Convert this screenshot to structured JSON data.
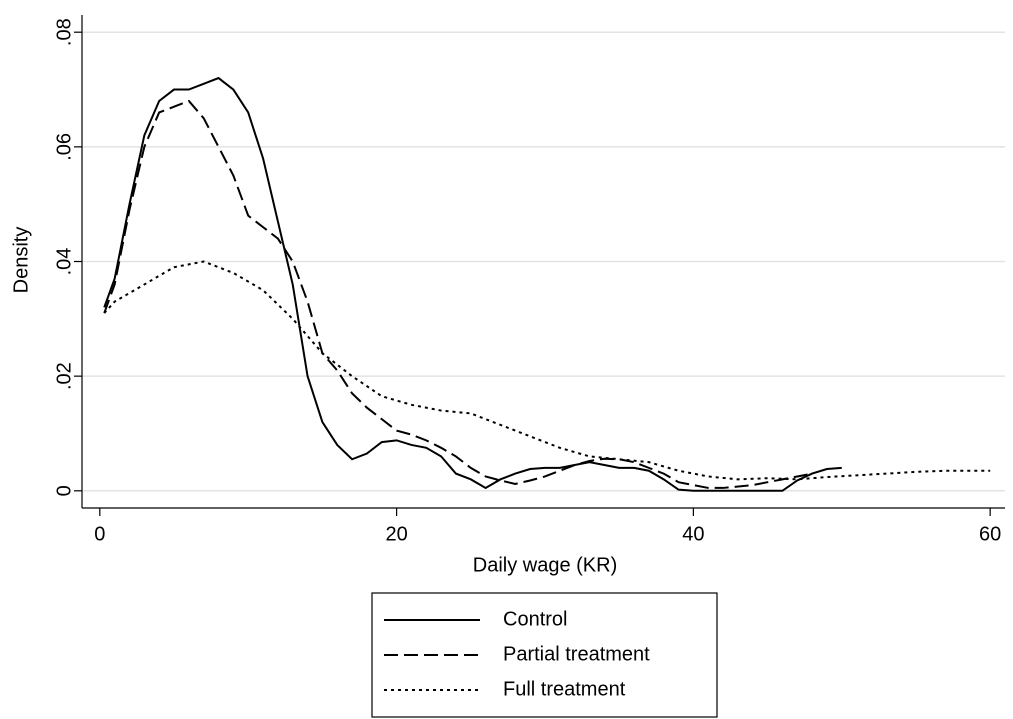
{
  "chart_data": {
    "type": "line",
    "x_label": "Daily wage (KR)",
    "y_label": "Density",
    "xlim": [
      -1.2,
      61
    ],
    "ylim": [
      -0.003,
      0.083
    ],
    "xticks": [
      0,
      20,
      40,
      60
    ],
    "yticks": [
      0,
      {
        "value": 0.02,
        "label": ".02"
      },
      {
        "value": 0.04,
        "label": ".04"
      },
      {
        "value": 0.06,
        "label": ".06"
      },
      {
        "value": 0.08,
        "label": ".08"
      }
    ],
    "grid": true,
    "legend": "bottom",
    "series": [
      {
        "name": "Control",
        "color": "#000000",
        "dash": "solid",
        "x": [
          0.3,
          1,
          2,
          3,
          4,
          5,
          6,
          7,
          8,
          9,
          10,
          11,
          12,
          13,
          14,
          15,
          16,
          17,
          18,
          19,
          20,
          21,
          22,
          23,
          24,
          25,
          26,
          27,
          28,
          29,
          30,
          31,
          32,
          33,
          34,
          35,
          36,
          37,
          38,
          39,
          40,
          42,
          44,
          46,
          47,
          48,
          49,
          50
        ],
        "values": [
          0.032,
          0.037,
          0.05,
          0.062,
          0.068,
          0.07,
          0.07,
          0.071,
          0.072,
          0.07,
          0.066,
          0.058,
          0.047,
          0.036,
          0.02,
          0.012,
          0.008,
          0.0055,
          0.0065,
          0.0085,
          0.0088,
          0.008,
          0.0075,
          0.006,
          0.003,
          0.002,
          0.0005,
          0.002,
          0.003,
          0.0038,
          0.004,
          0.004,
          0.0045,
          0.005,
          0.0045,
          0.004,
          0.004,
          0.0035,
          0.002,
          0.0002,
          0,
          0,
          0,
          0,
          0.0018,
          0.003,
          0.0038,
          0.004
        ]
      },
      {
        "name": "Partial treatment",
        "color": "#000000",
        "dash": "dashed",
        "x": [
          0.3,
          1,
          2,
          3,
          4,
          5,
          6,
          7,
          8,
          9,
          10,
          11,
          12,
          13,
          14,
          15,
          16,
          17,
          18,
          19,
          20,
          21,
          22,
          23,
          24,
          25,
          26,
          27,
          28,
          29,
          30,
          31,
          32,
          33,
          34,
          35,
          36,
          37,
          38,
          39,
          40,
          41,
          42,
          44,
          46,
          47,
          48
        ],
        "values": [
          0.031,
          0.036,
          0.049,
          0.06,
          0.066,
          0.067,
          0.068,
          0.065,
          0.06,
          0.055,
          0.048,
          0.046,
          0.044,
          0.04,
          0.033,
          0.024,
          0.021,
          0.017,
          0.0145,
          0.0125,
          0.0105,
          0.0098,
          0.0088,
          0.0075,
          0.006,
          0.004,
          0.0025,
          0.0018,
          0.0012,
          0.0018,
          0.0025,
          0.0035,
          0.0045,
          0.0052,
          0.0056,
          0.0055,
          0.005,
          0.004,
          0.003,
          0.0015,
          0.001,
          0.0005,
          0.0005,
          0.001,
          0.002,
          0.0025,
          0.003
        ]
      },
      {
        "name": "Full treatment",
        "color": "#000000",
        "dash": "dotted",
        "x": [
          0.3,
          1,
          3,
          5,
          7,
          9,
          11,
          13,
          15,
          17,
          19,
          21,
          23,
          25,
          27,
          29,
          31,
          33,
          35,
          37,
          39,
          41,
          43,
          45,
          47,
          49,
          51,
          53,
          55,
          57,
          59,
          60
        ],
        "values": [
          0.031,
          0.033,
          0.036,
          0.039,
          0.04,
          0.038,
          0.035,
          0.03,
          0.024,
          0.02,
          0.0165,
          0.015,
          0.014,
          0.0135,
          0.0115,
          0.0095,
          0.0075,
          0.006,
          0.0055,
          0.005,
          0.0035,
          0.0025,
          0.002,
          0.0022,
          0.002,
          0.0024,
          0.0027,
          0.003,
          0.0033,
          0.0035,
          0.0035,
          0.0035
        ]
      }
    ]
  }
}
